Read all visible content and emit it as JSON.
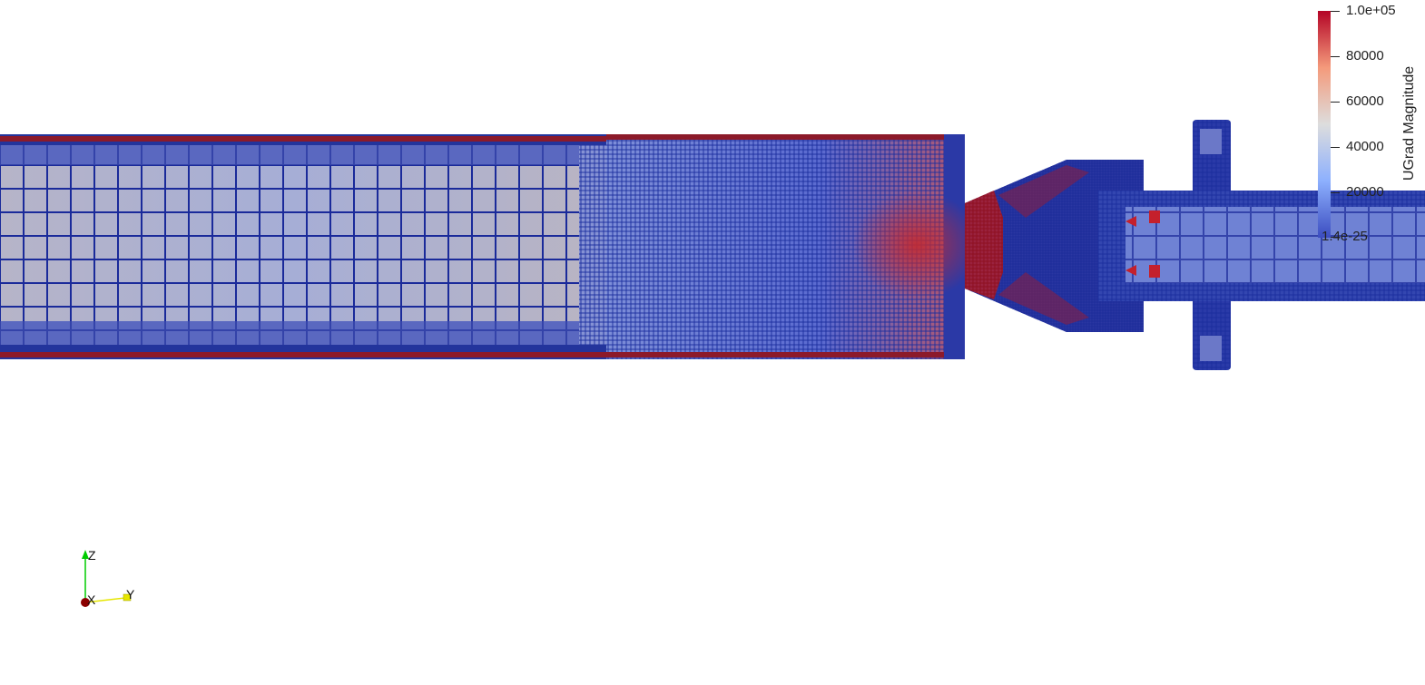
{
  "colorbar": {
    "title": "UGrad Magnitude",
    "labels": [
      "1.0e+05",
      "80000",
      "60000",
      "40000",
      "20000",
      "1.4e-25"
    ],
    "colors": {
      "low": "#3b4cc0",
      "mid": "#dddddd",
      "high": "#b40426"
    }
  },
  "orientation_axes": {
    "z_label": "Z",
    "x_label": "X",
    "y_label": "Y",
    "colors": {
      "z": "#00cc00",
      "y": "#e6e600",
      "x": "#8b0000"
    }
  },
  "mesh": {
    "colormap": "cool-to-warm",
    "edge_color": "#0b1a8c"
  }
}
